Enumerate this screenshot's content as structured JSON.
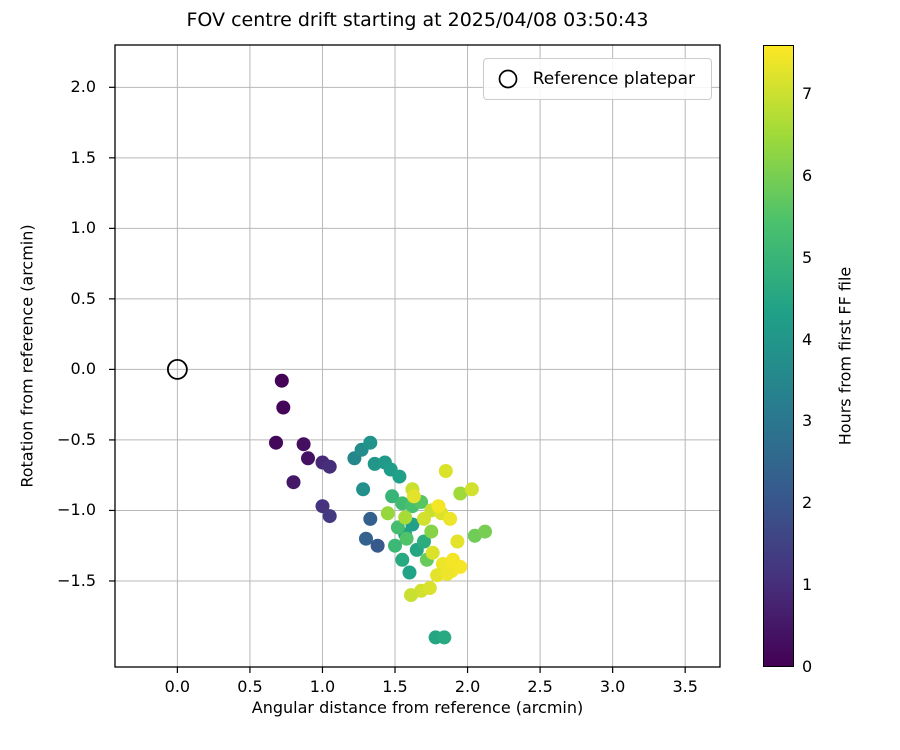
{
  "chart_data": {
    "type": "scatter",
    "title": "FOV centre drift starting at 2025/04/08 03:50:43",
    "xlabel": "Angular distance from reference (arcmin)",
    "ylabel": "Rotation from reference (arcmin)",
    "legend": [
      "Reference platepar"
    ],
    "grid": true,
    "grid_color": "#b8b8b8",
    "xlim": [
      -0.43,
      3.74
    ],
    "ylim": [
      -2.11,
      2.3
    ],
    "x_ticks": [
      0.0,
      0.5,
      1.0,
      1.5,
      2.0,
      2.5,
      3.0,
      3.5
    ],
    "x_tick_labels": [
      "0.0",
      "0.5",
      "1.0",
      "1.5",
      "2.0",
      "2.5",
      "3.0",
      "3.5"
    ],
    "y_ticks": [
      2.0,
      1.5,
      1.0,
      0.5,
      0.0,
      -0.5,
      -1.0,
      -1.5
    ],
    "y_tick_labels": [
      "2.0",
      "1.5",
      "1.0",
      "0.5",
      "0.0",
      "−0.5",
      "−1.0",
      "−1.5"
    ],
    "reference_point": {
      "x": 0.0,
      "y": 0.0
    },
    "colorbar": {
      "label": "Hours from first FF file",
      "vmin": 0,
      "vmax": 7.6,
      "ticks": [
        0,
        1,
        2,
        3,
        4,
        5,
        6,
        7
      ],
      "tick_labels": [
        "0",
        "1",
        "2",
        "3",
        "4",
        "5",
        "6",
        "7"
      ]
    },
    "colormap": "viridis",
    "colormap_stops": [
      [
        0.0,
        "#440154"
      ],
      [
        0.143,
        "#46327e"
      ],
      [
        0.286,
        "#365c8d"
      ],
      [
        0.429,
        "#277f8e"
      ],
      [
        0.571,
        "#1fa187"
      ],
      [
        0.714,
        "#4ac16d"
      ],
      [
        0.857,
        "#a0da39"
      ],
      [
        1.0,
        "#fde725"
      ]
    ],
    "points_format": [
      "x_arcmin",
      "y_arcmin",
      "hours"
    ],
    "points": [
      [
        0.72,
        -0.08,
        0.05
      ],
      [
        0.73,
        -0.27,
        0.1
      ],
      [
        0.68,
        -0.52,
        0.15
      ],
      [
        0.87,
        -0.53,
        0.3
      ],
      [
        0.9,
        -0.63,
        0.35
      ],
      [
        0.8,
        -0.8,
        0.5
      ],
      [
        1.0,
        -0.66,
        0.9
      ],
      [
        1.05,
        -0.69,
        1.0
      ],
      [
        1.0,
        -0.97,
        1.1
      ],
      [
        1.05,
        -1.04,
        1.3
      ],
      [
        1.33,
        -1.06,
        2.3
      ],
      [
        1.38,
        -1.25,
        2.1
      ],
      [
        1.3,
        -1.2,
        2.4
      ],
      [
        1.28,
        -0.85,
        3.8
      ],
      [
        1.22,
        -0.63,
        3.5
      ],
      [
        1.27,
        -0.57,
        3.7
      ],
      [
        1.33,
        -0.52,
        3.9
      ],
      [
        1.36,
        -0.67,
        4.0
      ],
      [
        1.43,
        -0.66,
        4.1
      ],
      [
        1.47,
        -0.71,
        4.2
      ],
      [
        1.53,
        -0.76,
        4.3
      ],
      [
        1.62,
        -1.1,
        4.3
      ],
      [
        1.57,
        -1.17,
        4.4
      ],
      [
        1.65,
        -1.28,
        4.5
      ],
      [
        1.55,
        -1.35,
        4.6
      ],
      [
        1.6,
        -1.44,
        4.4
      ],
      [
        1.7,
        -1.22,
        4.7
      ],
      [
        1.78,
        -1.9,
        4.5
      ],
      [
        1.84,
        -1.9,
        4.6
      ],
      [
        1.48,
        -0.9,
        5.0
      ],
      [
        1.55,
        -0.95,
        5.2
      ],
      [
        1.62,
        -0.97,
        5.4
      ],
      [
        1.68,
        -0.94,
        5.6
      ],
      [
        1.52,
        -1.12,
        5.3
      ],
      [
        1.58,
        -1.2,
        5.5
      ],
      [
        1.5,
        -1.25,
        5.1
      ],
      [
        1.72,
        -1.35,
        5.8
      ],
      [
        2.05,
        -1.18,
        5.9
      ],
      [
        2.12,
        -1.15,
        6.0
      ],
      [
        1.75,
        -1.15,
        6.2
      ],
      [
        1.95,
        -0.88,
        6.5
      ],
      [
        1.45,
        -1.02,
        6.4
      ],
      [
        1.57,
        -1.05,
        6.6
      ],
      [
        1.62,
        -0.85,
        7.0
      ],
      [
        1.85,
        -0.72,
        7.2
      ],
      [
        2.03,
        -0.85,
        7.1
      ],
      [
        1.63,
        -0.9,
        7.3
      ],
      [
        1.75,
        -1.0,
        7.0
      ],
      [
        1.82,
        -1.02,
        7.2
      ],
      [
        1.88,
        -1.06,
        7.4
      ],
      [
        1.7,
        -1.06,
        7.1
      ],
      [
        1.8,
        -0.97,
        7.5
      ],
      [
        1.93,
        -1.22,
        7.3
      ],
      [
        1.76,
        -1.3,
        7.2
      ],
      [
        1.83,
        -1.38,
        7.4
      ],
      [
        1.89,
        -1.43,
        7.5
      ],
      [
        1.95,
        -1.4,
        7.5
      ],
      [
        1.79,
        -1.46,
        7.3
      ],
      [
        1.86,
        -1.45,
        7.4
      ],
      [
        1.68,
        -1.57,
        7.1
      ],
      [
        1.61,
        -1.6,
        7.0
      ],
      [
        1.74,
        -1.55,
        7.2
      ],
      [
        1.9,
        -1.35,
        7.5
      ]
    ]
  }
}
